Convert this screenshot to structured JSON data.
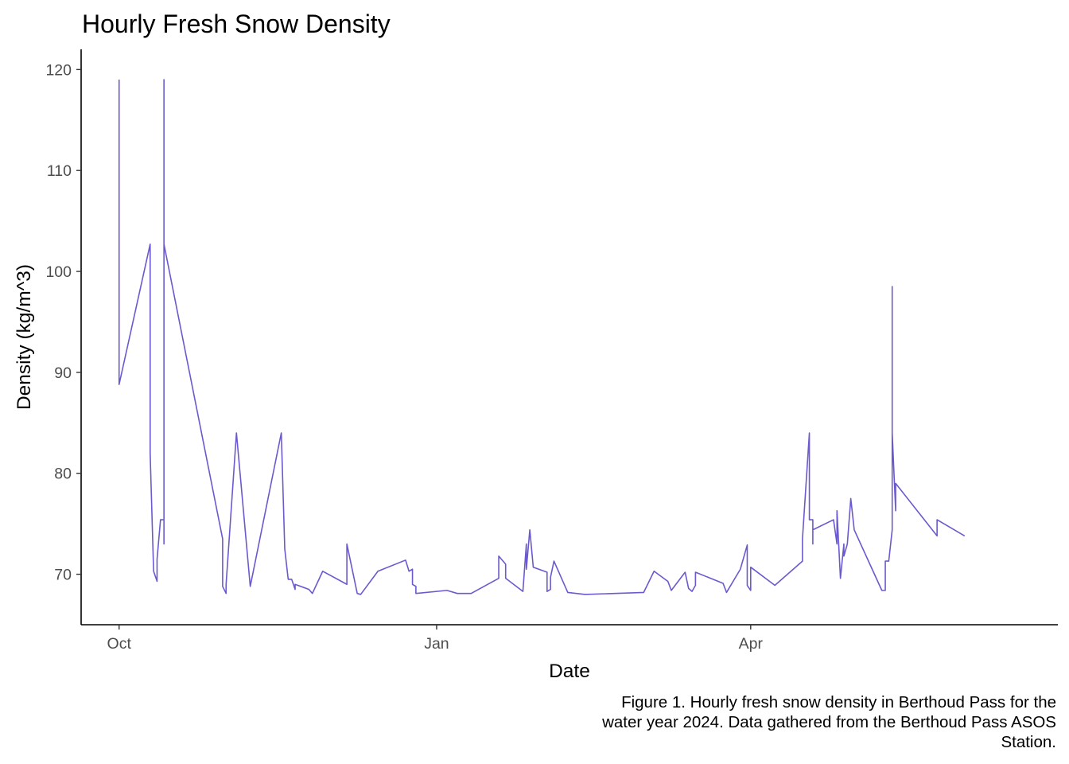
{
  "chart_data": {
    "type": "line",
    "title": "Hourly Fresh Snow Density",
    "xlabel": "Date",
    "ylabel": "Density (kg/m^3)",
    "x_ticks": [
      {
        "date": "2023-10-01",
        "label": "Oct"
      },
      {
        "date": "2024-01-01",
        "label": "Jan"
      },
      {
        "date": "2024-04-01",
        "label": "Apr"
      }
    ],
    "y_ticks": [
      70,
      80,
      90,
      100,
      110,
      120
    ],
    "xlim": [
      "2023-09-20",
      "2024-06-29"
    ],
    "ylim": [
      65,
      122
    ],
    "grid": false,
    "legend": "none",
    "line_color": "#6a5acd",
    "series": [
      {
        "points": [
          [
            "2023-10-01",
            119
          ],
          [
            "2023-10-01",
            88.8
          ],
          [
            "2023-10-10",
            102.7
          ],
          [
            "2023-10-10",
            82
          ],
          [
            "2023-10-11",
            70.3
          ],
          [
            "2023-10-12",
            69.3
          ],
          [
            "2023-10-12",
            71.5
          ],
          [
            "2023-10-13",
            75.4
          ],
          [
            "2023-10-14",
            75.4
          ],
          [
            "2023-10-14",
            73
          ],
          [
            "2023-10-14",
            119
          ],
          [
            "2023-10-14",
            102.7
          ],
          [
            "2023-10-31",
            73.5
          ],
          [
            "2023-10-31",
            68.8
          ],
          [
            "2023-11-01",
            68.1
          ],
          [
            "2023-11-01",
            69
          ],
          [
            "2023-11-04",
            84
          ],
          [
            "2023-11-08",
            68.8
          ],
          [
            "2023-11-17",
            84
          ],
          [
            "2023-11-18",
            72.5
          ],
          [
            "2023-11-19",
            69.5
          ],
          [
            "2023-11-20",
            69.5
          ],
          [
            "2023-11-21",
            68.5
          ],
          [
            "2023-11-21",
            69
          ],
          [
            "2023-11-25",
            68.5
          ],
          [
            "2023-11-26",
            68.1
          ],
          [
            "2023-11-29",
            70.3
          ],
          [
            "2023-12-06",
            69
          ],
          [
            "2023-12-06",
            73
          ],
          [
            "2023-12-09",
            68.1
          ],
          [
            "2023-12-10",
            68
          ],
          [
            "2023-12-15",
            70.3
          ],
          [
            "2023-12-23",
            71.4
          ],
          [
            "2023-12-24",
            70.3
          ],
          [
            "2023-12-25",
            70.5
          ],
          [
            "2023-12-25",
            69
          ],
          [
            "2023-12-26",
            68.8
          ],
          [
            "2023-12-26",
            68.1
          ],
          [
            "2024-01-04",
            68.4
          ],
          [
            "2024-01-07",
            68.1
          ],
          [
            "2024-01-11",
            68.1
          ],
          [
            "2024-01-19",
            69.6
          ],
          [
            "2024-01-19",
            71.8
          ],
          [
            "2024-01-21",
            71
          ],
          [
            "2024-01-21",
            69.6
          ],
          [
            "2024-01-26",
            68.3
          ],
          [
            "2024-01-27",
            73
          ],
          [
            "2024-01-27",
            70.5
          ],
          [
            "2024-01-28",
            74.4
          ],
          [
            "2024-01-29",
            70.7
          ],
          [
            "2024-02-02",
            70.2
          ],
          [
            "2024-02-02",
            68.3
          ],
          [
            "2024-02-03",
            68.5
          ],
          [
            "2024-02-03",
            69.7
          ],
          [
            "2024-02-04",
            71.3
          ],
          [
            "2024-02-08",
            68.2
          ],
          [
            "2024-02-13",
            68
          ],
          [
            "2024-03-01",
            68.2
          ],
          [
            "2024-03-04",
            70.3
          ],
          [
            "2024-03-08",
            69.3
          ],
          [
            "2024-03-09",
            68.4
          ],
          [
            "2024-03-13",
            70.2
          ],
          [
            "2024-03-14",
            68.6
          ],
          [
            "2024-03-15",
            68.3
          ],
          [
            "2024-03-16",
            68.9
          ],
          [
            "2024-03-16",
            70.2
          ],
          [
            "2024-03-24",
            69.1
          ],
          [
            "2024-03-25",
            68.2
          ],
          [
            "2024-03-29",
            70.5
          ],
          [
            "2024-03-31",
            72.9
          ],
          [
            "2024-03-31",
            68.9
          ],
          [
            "2024-04-01",
            68.4
          ],
          [
            "2024-04-01",
            70.7
          ],
          [
            "2024-04-08",
            68.9
          ],
          [
            "2024-04-16",
            71.3
          ],
          [
            "2024-04-16",
            73.5
          ],
          [
            "2024-04-18",
            84
          ],
          [
            "2024-04-18",
            75.4
          ],
          [
            "2024-04-19",
            75.4
          ],
          [
            "2024-04-19",
            73
          ],
          [
            "2024-04-19",
            74.4
          ],
          [
            "2024-04-25",
            75.4
          ],
          [
            "2024-04-26",
            73
          ],
          [
            "2024-04-26",
            76.3
          ],
          [
            "2024-04-27",
            69.6
          ],
          [
            "2024-04-28",
            73
          ],
          [
            "2024-04-28",
            71.8
          ],
          [
            "2024-04-29",
            73
          ],
          [
            "2024-04-30",
            77.5
          ],
          [
            "2024-05-01",
            74.4
          ],
          [
            "2024-05-09",
            68.4
          ],
          [
            "2024-05-10",
            68.4
          ],
          [
            "2024-05-10",
            71.3
          ],
          [
            "2024-05-11",
            71.3
          ],
          [
            "2024-05-12",
            74.4
          ],
          [
            "2024-05-12",
            98.5
          ],
          [
            "2024-05-12",
            84
          ],
          [
            "2024-05-13",
            76.3
          ],
          [
            "2024-05-13",
            79
          ],
          [
            "2024-05-25",
            73.8
          ],
          [
            "2024-05-25",
            75.4
          ],
          [
            "2024-06-02",
            73.8
          ]
        ]
      }
    ]
  },
  "caption": {
    "lines": [
      "Figure 1. Hourly fresh snow density in Berthoud Pass for the",
      "water year 2024. Data gathered from the Berthoud Pass ASOS",
      "Station."
    ]
  }
}
